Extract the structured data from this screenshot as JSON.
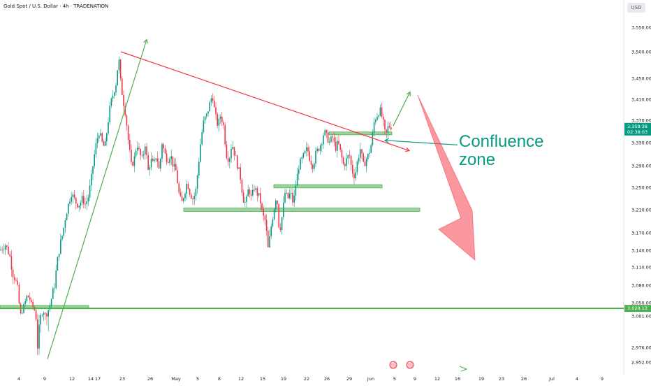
{
  "header": {
    "title": "Gold Spot / U.S. Dollar · 4h · TRADENATION",
    "currency_button": "USD"
  },
  "annotation": {
    "line1": "Confluence",
    "line2": "zone"
  },
  "colors": {
    "up": "#089981",
    "down": "#f23645",
    "zone": "#4caf50",
    "trend": "#f23645",
    "arrow": "#f7525f",
    "support": "#4caf50"
  },
  "chart_data": {
    "type": "candlestick",
    "ylim": [
      2940,
      3590
    ],
    "y_ticks": [
      "3,550.00",
      "3,500.00",
      "3,450.00",
      "3,410.00",
      "3,370.00",
      "3,330.00",
      "3,290.00",
      "3,250.00",
      "3,210.00",
      "3,170.00",
      "3,140.00",
      "3,110.00",
      "3,080.00",
      "3,050.00",
      "3,001.00",
      "2,976.00",
      "2,952.00"
    ],
    "x_ticks": [
      "4",
      "9",
      "12",
      "14",
      "17",
      "23",
      "26",
      "May",
      "5",
      "8",
      "12",
      "15",
      "19",
      "22",
      "26",
      "29",
      "Jun",
      "5",
      "9",
      "12",
      "16",
      "19",
      "23",
      "26",
      "Jul",
      "4",
      "9"
    ],
    "price_badges": [
      {
        "label": "3,359.38",
        "sub": "02:38:03",
        "value": 3359,
        "color": "#089981"
      },
      {
        "label": "3,029.13",
        "value": 3029,
        "color": "#4caf50"
      }
    ],
    "support_line": 3029,
    "anchors": [
      [
        0,
        3140
      ],
      [
        8,
        3150
      ],
      [
        14,
        3130
      ],
      [
        18,
        3100
      ],
      [
        22,
        3090
      ],
      [
        26,
        3070
      ],
      [
        30,
        3000
      ],
      [
        34,
        3040
      ],
      [
        38,
        3060
      ],
      [
        42,
        3060
      ],
      [
        46,
        3040
      ],
      [
        50,
        3020
      ],
      [
        54,
        2975
      ],
      [
        58,
        3000
      ],
      [
        62,
        3020
      ],
      [
        66,
        3000
      ],
      [
        70,
        3030
      ],
      [
        74,
        3060
      ],
      [
        78,
        3080
      ],
      [
        82,
        3120
      ],
      [
        86,
        3150
      ],
      [
        90,
        3170
      ],
      [
        94,
        3200
      ],
      [
        98,
        3220
      ],
      [
        102,
        3240
      ],
      [
        106,
        3230
      ],
      [
        110,
        3220
      ],
      [
        114,
        3220
      ],
      [
        118,
        3230
      ],
      [
        122,
        3220
      ],
      [
        126,
        3230
      ],
      [
        130,
        3260
      ],
      [
        134,
        3300
      ],
      [
        138,
        3330
      ],
      [
        142,
        3350
      ],
      [
        146,
        3330
      ],
      [
        150,
        3320
      ],
      [
        154,
        3360
      ],
      [
        158,
        3400
      ],
      [
        162,
        3420
      ],
      [
        166,
        3440
      ],
      [
        170,
        3490
      ],
      [
        172,
        3450
      ],
      [
        176,
        3410
      ],
      [
        180,
        3380
      ],
      [
        184,
        3330
      ],
      [
        188,
        3290
      ],
      [
        192,
        3300
      ],
      [
        196,
        3330
      ],
      [
        200,
        3310
      ],
      [
        204,
        3300
      ],
      [
        208,
        3330
      ],
      [
        212,
        3280
      ],
      [
        216,
        3300
      ],
      [
        220,
        3290
      ],
      [
        224,
        3310
      ],
      [
        228,
        3280
      ],
      [
        232,
        3330
      ],
      [
        236,
        3310
      ],
      [
        240,
        3300
      ],
      [
        244,
        3310
      ],
      [
        248,
        3290
      ],
      [
        252,
        3280
      ],
      [
        256,
        3240
      ],
      [
        260,
        3220
      ],
      [
        264,
        3240
      ],
      [
        268,
        3260
      ],
      [
        272,
        3240
      ],
      [
        276,
        3230
      ],
      [
        280,
        3240
      ],
      [
        284,
        3290
      ],
      [
        288,
        3340
      ],
      [
        292,
        3370
      ],
      [
        296,
        3380
      ],
      [
        300,
        3400
      ],
      [
        304,
        3420
      ],
      [
        308,
        3380
      ],
      [
        312,
        3360
      ],
      [
        316,
        3380
      ],
      [
        320,
        3360
      ],
      [
        324,
        3310
      ],
      [
        328,
        3300
      ],
      [
        332,
        3330
      ],
      [
        336,
        3310
      ],
      [
        340,
        3290
      ],
      [
        344,
        3270
      ],
      [
        348,
        3230
      ],
      [
        352,
        3220
      ],
      [
        356,
        3250
      ],
      [
        360,
        3230
      ],
      [
        364,
        3250
      ],
      [
        368,
        3240
      ],
      [
        372,
        3230
      ],
      [
        376,
        3200
      ],
      [
        380,
        3190
      ],
      [
        384,
        3140
      ],
      [
        388,
        3180
      ],
      [
        392,
        3210
      ],
      [
        396,
        3240
      ],
      [
        400,
        3170
      ],
      [
        404,
        3200
      ],
      [
        408,
        3240
      ],
      [
        412,
        3230
      ],
      [
        416,
        3240
      ],
      [
        420,
        3220
      ],
      [
        424,
        3260
      ],
      [
        428,
        3290
      ],
      [
        432,
        3300
      ],
      [
        436,
        3310
      ],
      [
        440,
        3320
      ],
      [
        444,
        3300
      ],
      [
        448,
        3290
      ],
      [
        452,
        3310
      ],
      [
        456,
        3320
      ],
      [
        460,
        3330
      ],
      [
        464,
        3350
      ],
      [
        468,
        3340
      ],
      [
        472,
        3330
      ],
      [
        476,
        3340
      ],
      [
        480,
        3320
      ],
      [
        484,
        3330
      ],
      [
        488,
        3310
      ],
      [
        492,
        3290
      ],
      [
        496,
        3300
      ],
      [
        500,
        3310
      ],
      [
        504,
        3280
      ],
      [
        508,
        3270
      ],
      [
        512,
        3300
      ],
      [
        516,
        3320
      ],
      [
        520,
        3290
      ],
      [
        524,
        3300
      ],
      [
        528,
        3310
      ],
      [
        532,
        3330
      ],
      [
        536,
        3370
      ],
      [
        540,
        3380
      ],
      [
        544,
        3390
      ],
      [
        548,
        3370
      ],
      [
        552,
        3340
      ],
      [
        556,
        3360
      ],
      [
        560,
        3359
      ]
    ],
    "zones": [
      {
        "x1": 0,
        "x2": 127,
        "y1": 3040,
        "y2": 3030
      },
      {
        "x1": 263,
        "x2": 601,
        "y1": 3213,
        "y2": 3207
      },
      {
        "x1": 392,
        "x2": 547,
        "y1": 3255,
        "y2": 3249
      },
      {
        "x1": 471,
        "x2": 561,
        "y1": 3349,
        "y2": 3344
      }
    ],
    "trendlines": [
      {
        "x1": 173,
        "y1": 3500,
        "x2": 586,
        "y2": 3316,
        "color": "#f23645"
      },
      {
        "x1": 68,
        "y1": 2957,
        "x2": 210,
        "y2": 3525,
        "color": "#4caf50"
      },
      {
        "x1": 563,
        "y1": 3360,
        "x2": 587,
        "y2": 3424,
        "color": "#4caf50"
      },
      {
        "x1": 655,
        "y1": 3326,
        "x2": 551,
        "y2": 3334,
        "color": "#089981"
      }
    ]
  }
}
